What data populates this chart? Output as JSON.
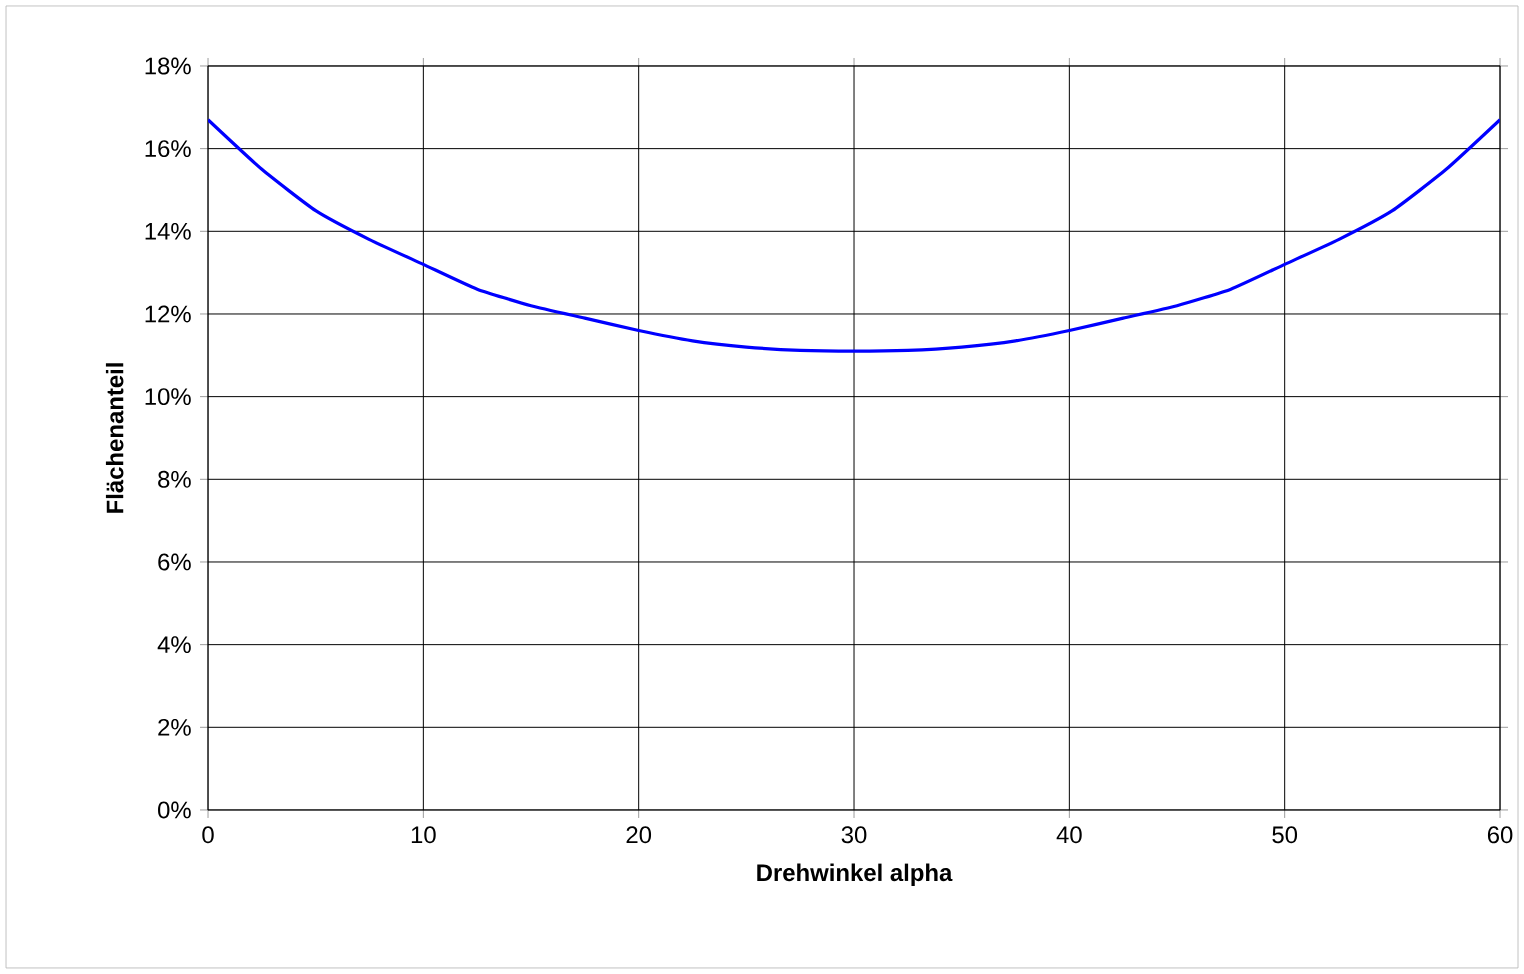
{
  "chart_data": {
    "type": "line",
    "xlabel": "Drehwinkel alpha",
    "ylabel": "Flächenanteil",
    "x": [
      0,
      2.5,
      5,
      7.5,
      10,
      12.5,
      15,
      17.5,
      20,
      22.5,
      25,
      27.5,
      30,
      32.5,
      35,
      37.5,
      40,
      42.5,
      45,
      47.5,
      50,
      52.5,
      55,
      57.5,
      60
    ],
    "series": [
      {
        "color": "#0000ff",
        "values": [
          16.7,
          15.5,
          14.5,
          13.8,
          13.2,
          12.6,
          12.2,
          11.9,
          11.6,
          11.35,
          11.2,
          11.12,
          11.1,
          11.12,
          11.2,
          11.35,
          11.6,
          11.9,
          12.2,
          12.6,
          13.2,
          13.8,
          14.5,
          15.5,
          16.7
        ]
      }
    ],
    "xlim": [
      0,
      60
    ],
    "xticks": [
      0,
      10,
      20,
      30,
      40,
      50,
      60
    ],
    "ylim": [
      0,
      18
    ],
    "yticks": [
      {
        "value": 0,
        "label": "0%"
      },
      {
        "value": 2,
        "label": "2%"
      },
      {
        "value": 4,
        "label": "4%"
      },
      {
        "value": 6,
        "label": "6%"
      },
      {
        "value": 8,
        "label": "8%"
      },
      {
        "value": 10,
        "label": "10%"
      },
      {
        "value": 12,
        "label": "12%"
      },
      {
        "value": 14,
        "label": "14%"
      },
      {
        "value": 16,
        "label": "16%"
      },
      {
        "value": 18,
        "label": "18%"
      }
    ],
    "grid": true,
    "marker": "none",
    "line_style": "solid"
  }
}
